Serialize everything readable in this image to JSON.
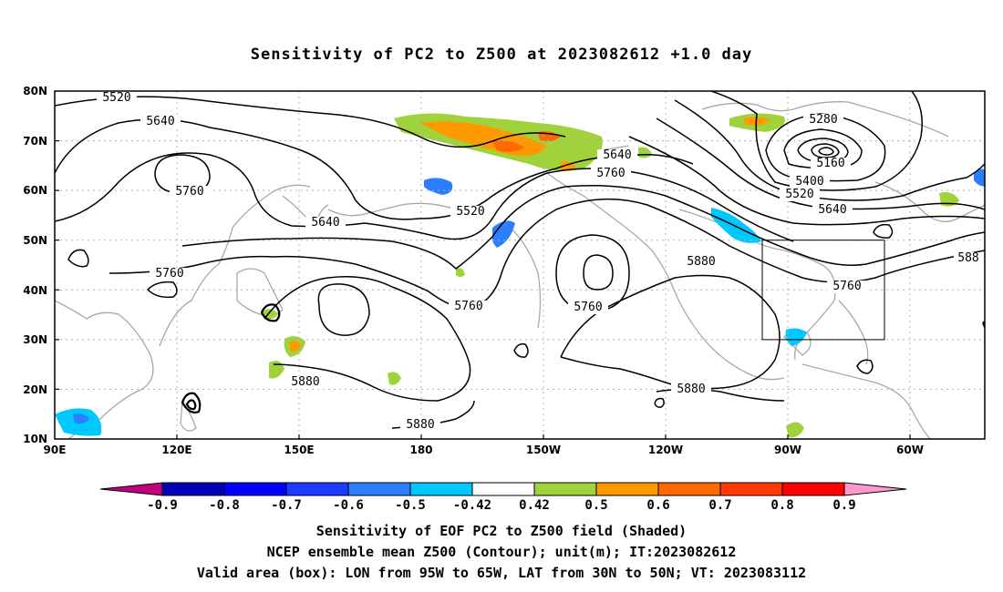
{
  "title": "Sensitivity of PC2 to Z500 at 2023082612 +1.0 day",
  "map": {
    "lon_labels": [
      "90E",
      "120E",
      "150E",
      "180",
      "150W",
      "120W",
      "90W",
      "60W"
    ],
    "lat_labels": [
      "80N",
      "70N",
      "60N",
      "50N",
      "40N",
      "30N",
      "20N",
      "10N"
    ],
    "contour_labels": [
      "5520",
      "5640",
      "5760",
      "5640",
      "5760",
      "5520",
      "5640",
      "5760",
      "5760",
      "5760",
      "5880",
      "5880",
      "5880",
      "5880",
      "5280",
      "5160",
      "5400",
      "5520",
      "5640",
      "5760",
      "588"
    ],
    "valid_box": {
      "lon_from": "95W",
      "lon_to": "65W",
      "lat_from": "30N",
      "lat_to": "50N"
    }
  },
  "colorbar": {
    "labels": [
      "-0.9",
      "-0.8",
      "-0.7",
      "-0.6",
      "-0.5",
      "-0.42",
      "0.42",
      "0.5",
      "0.6",
      "0.7",
      "0.8",
      "0.9"
    ],
    "colors": [
      "#c0007f",
      "#0000b8",
      "#0000ff",
      "#1e3cff",
      "#2a7fff",
      "#00c8ff",
      "#ffffff",
      "#a0d23c",
      "#ff9900",
      "#ff6a00",
      "#ff3a00",
      "#ff0000",
      "#ff99cc"
    ]
  },
  "captions": {
    "line1": "Sensitivity of EOF PC2 to Z500 field (Shaded)",
    "line2": "NCEP ensemble mean Z500 (Contour); unit(m); IT:2023082612",
    "line3": "Valid area (box): LON from 95W to 65W, LAT from 30N to 50N; VT: 2023083112"
  }
}
